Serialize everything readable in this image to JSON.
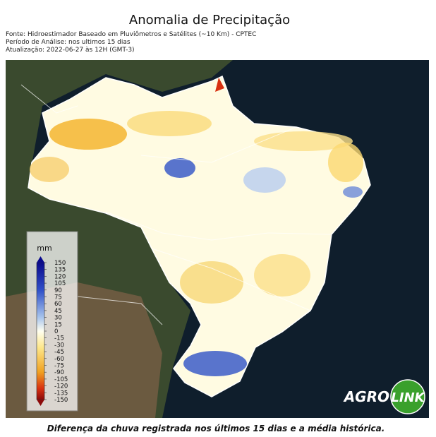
{
  "header": {
    "title": "Anomalia de Precipitação",
    "source_lines": [
      "Fonte: Hidroestimador Baseado em Pluviômetros e Satélites (~10 Km) - CPTEC",
      "Período de Análise: nos ultimos 15 dias",
      "Atualização: 2022-06-27 às 12H (GMT-3)"
    ]
  },
  "legend": {
    "title": "mm",
    "ticks": [
      150,
      135,
      120,
      105,
      90,
      75,
      60,
      45,
      30,
      15,
      0,
      -15,
      -30,
      -45,
      -60,
      -75,
      -90,
      -105,
      -120,
      -135,
      -150
    ]
  },
  "logo": {
    "part1": "AGRO",
    "part2": "LINK"
  },
  "caption": "Diferença da chuva registrada nos últimos 15 dias e a média histórica."
}
